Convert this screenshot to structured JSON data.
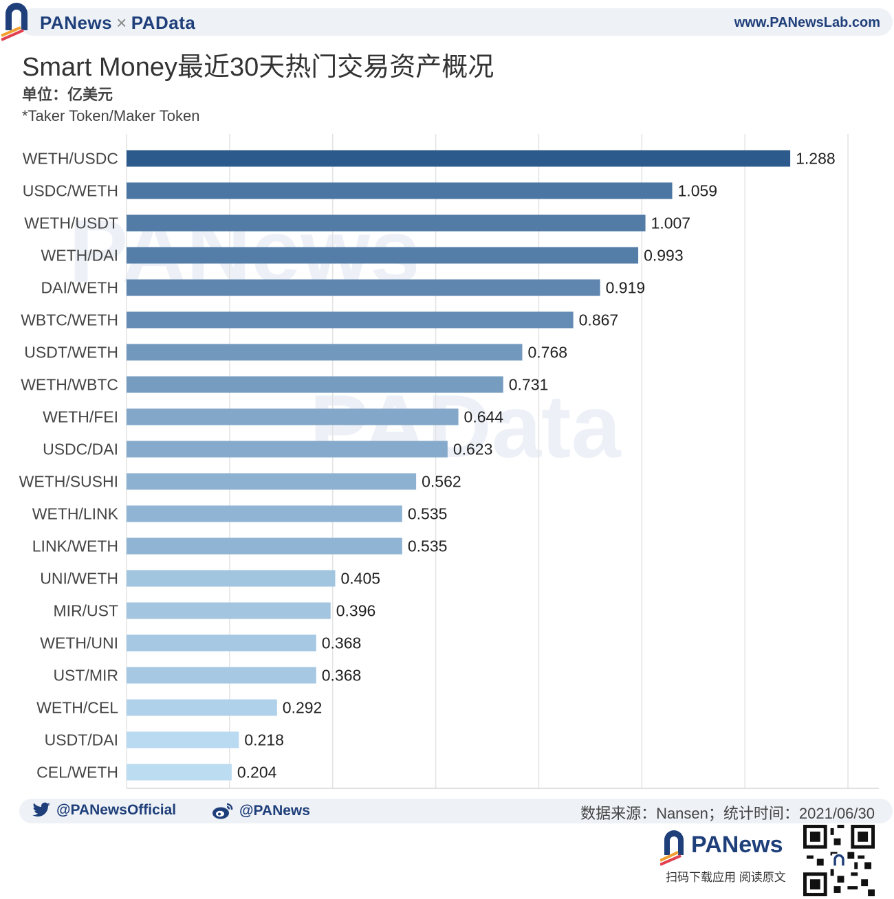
{
  "header": {
    "brand_left": "PANews",
    "brand_times": "×",
    "brand_right": "PAData",
    "site": "www.PANewsLab.com"
  },
  "title": "Smart Money最近30天热门交易资产概况",
  "unit": "单位：亿美元",
  "note": "*Taker Token/Maker Token",
  "watermarks": [
    "PANews",
    "PAData"
  ],
  "chart_data": {
    "type": "bar",
    "orientation": "horizontal",
    "title": "Smart Money最近30天热门交易资产概况",
    "xlabel": "",
    "ylabel": "",
    "xlim": [
      0,
      1.46
    ],
    "grid": true,
    "categories": [
      "WETH/USDC",
      "USDC/WETH",
      "WETH/USDT",
      "WETH/DAI",
      "DAI/WETH",
      "WBTC/WETH",
      "USDT/WETH",
      "WETH/WBTC",
      "WETH/FEI",
      "USDC/DAI",
      "WETH/SUSHI",
      "WETH/LINK",
      "LINK/WETH",
      "UNI/WETH",
      "MIR/UST",
      "WETH/UNI",
      "UST/MIR",
      "WETH/CEL",
      "USDT/DAI",
      "CEL/WETH"
    ],
    "values": [
      1.288,
      1.059,
      1.007,
      0.993,
      0.919,
      0.867,
      0.768,
      0.731,
      0.644,
      0.623,
      0.562,
      0.535,
      0.535,
      0.405,
      0.396,
      0.368,
      0.368,
      0.292,
      0.218,
      0.204
    ],
    "value_labels": [
      "1.288",
      "1.059",
      "1.007",
      "0.993",
      "0.919",
      "0.867",
      "0.768",
      "0.731",
      "0.644",
      "0.623",
      "0.562",
      "0.535",
      "0.535",
      "0.405",
      "0.396",
      "0.368",
      "0.368",
      "0.292",
      "0.218",
      "0.204"
    ],
    "color_range": [
      "#2d5a8c",
      "#bcdcf2"
    ]
  },
  "footer": {
    "twitter": "@PANewsOfficial",
    "weibo": "@PANews",
    "source": "数据来源：Nansen；统计时间：2021/06/30",
    "brand": "PANews",
    "cta": "扫码下载应用  阅读原文"
  },
  "colors": {
    "brand_blue": "#1f3f7a",
    "brand_orange": "#f0a030"
  },
  "icons": [
    "twitter-icon",
    "weibo-icon",
    "panews-logo-icon",
    "qr-code"
  ]
}
